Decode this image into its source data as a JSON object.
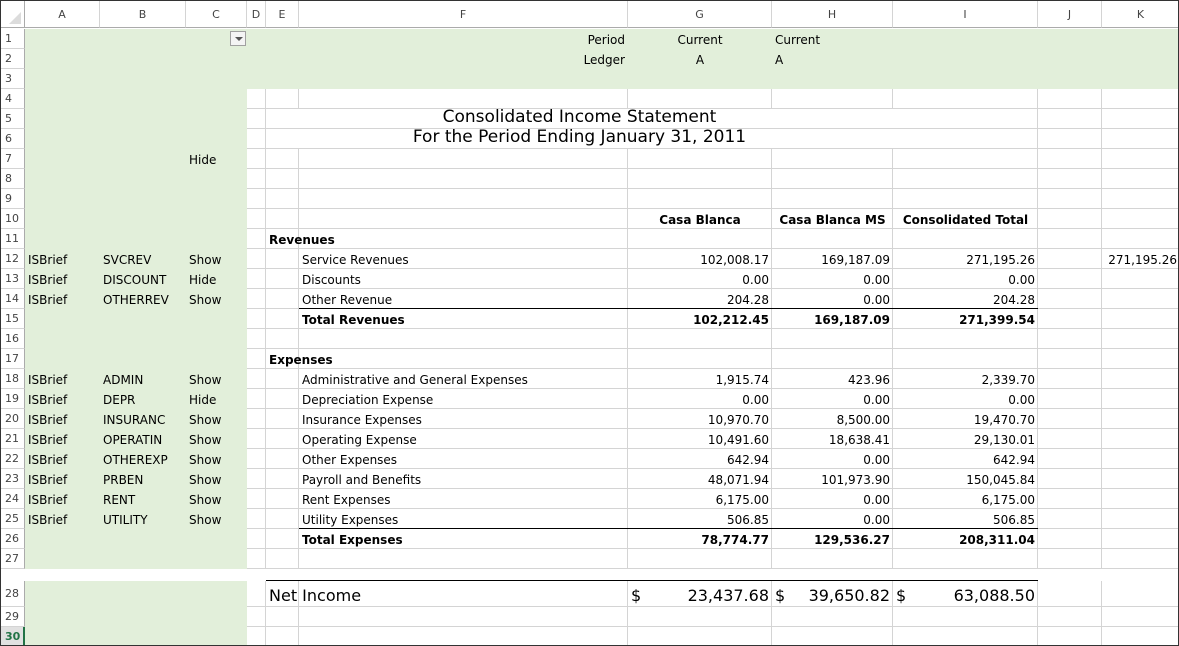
{
  "columns": [
    "A",
    "B",
    "C",
    "D",
    "E",
    "F",
    "G",
    "H",
    "I",
    "J",
    "K"
  ],
  "rows": [
    1,
    2,
    3,
    4,
    5,
    6,
    7,
    8,
    9,
    10,
    11,
    12,
    13,
    14,
    15,
    16,
    17,
    18,
    19,
    20,
    21,
    22,
    23,
    24,
    25,
    26,
    27,
    28,
    29,
    30
  ],
  "selected_row": 30,
  "colors": {
    "panel_green": "#e2efda",
    "selected_header": "#217346"
  },
  "filter_dropdown_icon": "chevron-down-icon",
  "params": {
    "period_label": "Period",
    "period_g": "Current",
    "period_h": "Current",
    "ledger_label": "Ledger",
    "ledger_g": "A",
    "ledger_h": "A"
  },
  "report": {
    "title": "Consolidated Income Statement",
    "subtitle": "For the Period Ending January 31, 2011",
    "hide_label": "Hide",
    "col_headers": [
      "Casa Blanca",
      "Casa Blanca MS",
      "Consolidated Total"
    ],
    "revenues_heading": "Revenues",
    "revenue_lines": [
      {
        "row": 12,
        "a": "ISBrief",
        "b": "SVCREV",
        "c": "Show",
        "label": "Service Revenues",
        "g": "102,008.17",
        "h": "169,187.09",
        "i": "271,195.26",
        "k": "271,195.26"
      },
      {
        "row": 13,
        "a": "ISBrief",
        "b": "DISCOUNT",
        "c": "Hide",
        "label": "Discounts",
        "g": "0.00",
        "h": "0.00",
        "i": "0.00"
      },
      {
        "row": 14,
        "a": "ISBrief",
        "b": "OTHERREV",
        "c": "Show",
        "label": "Other Revenue",
        "g": "204.28",
        "h": "0.00",
        "i": "204.28"
      }
    ],
    "total_revenues": {
      "row": 15,
      "label": "Total Revenues",
      "g": "102,212.45",
      "h": "169,187.09",
      "i": "271,399.54"
    },
    "expenses_heading": "Expenses",
    "expense_lines": [
      {
        "row": 18,
        "a": "ISBrief",
        "b": "ADMIN",
        "c": "Show",
        "label": "Administrative and General Expenses",
        "g": "1,915.74",
        "h": "423.96",
        "i": "2,339.70"
      },
      {
        "row": 19,
        "a": "ISBrief",
        "b": "DEPR",
        "c": "Hide",
        "label": "Depreciation Expense",
        "g": "0.00",
        "h": "0.00",
        "i": "0.00"
      },
      {
        "row": 20,
        "a": "ISBrief",
        "b": "INSURANC",
        "c": "Show",
        "label": "Insurance Expenses",
        "g": "10,970.70",
        "h": "8,500.00",
        "i": "19,470.70"
      },
      {
        "row": 21,
        "a": "ISBrief",
        "b": "OPERATIN",
        "c": "Show",
        "label": "Operating Expense",
        "g": "10,491.60",
        "h": "18,638.41",
        "i": "29,130.01"
      },
      {
        "row": 22,
        "a": "ISBrief",
        "b": "OTHEREXP",
        "c": "Show",
        "label": "Other Expenses",
        "g": "642.94",
        "h": "0.00",
        "i": "642.94"
      },
      {
        "row": 23,
        "a": "ISBrief",
        "b": "PRBEN",
        "c": "Show",
        "label": "Payroll and Benefits",
        "g": "48,071.94",
        "h": "101,973.90",
        "i": "150,045.84"
      },
      {
        "row": 24,
        "a": "ISBrief",
        "b": "RENT",
        "c": "Show",
        "label": "Rent Expenses",
        "g": "6,175.00",
        "h": "0.00",
        "i": "6,175.00"
      },
      {
        "row": 25,
        "a": "ISBrief",
        "b": "UTILITY",
        "c": "Show",
        "label": "Utility Expenses",
        "g": "506.85",
        "h": "0.00",
        "i": "506.85"
      }
    ],
    "total_expenses": {
      "row": 26,
      "label": "Total Expenses",
      "g": "78,774.77",
      "h": "129,536.27",
      "i": "208,311.04"
    },
    "net_income": {
      "label": "Net Income",
      "currency": "$",
      "g": "23,437.68",
      "h": "39,650.82",
      "i": "63,088.50"
    }
  }
}
